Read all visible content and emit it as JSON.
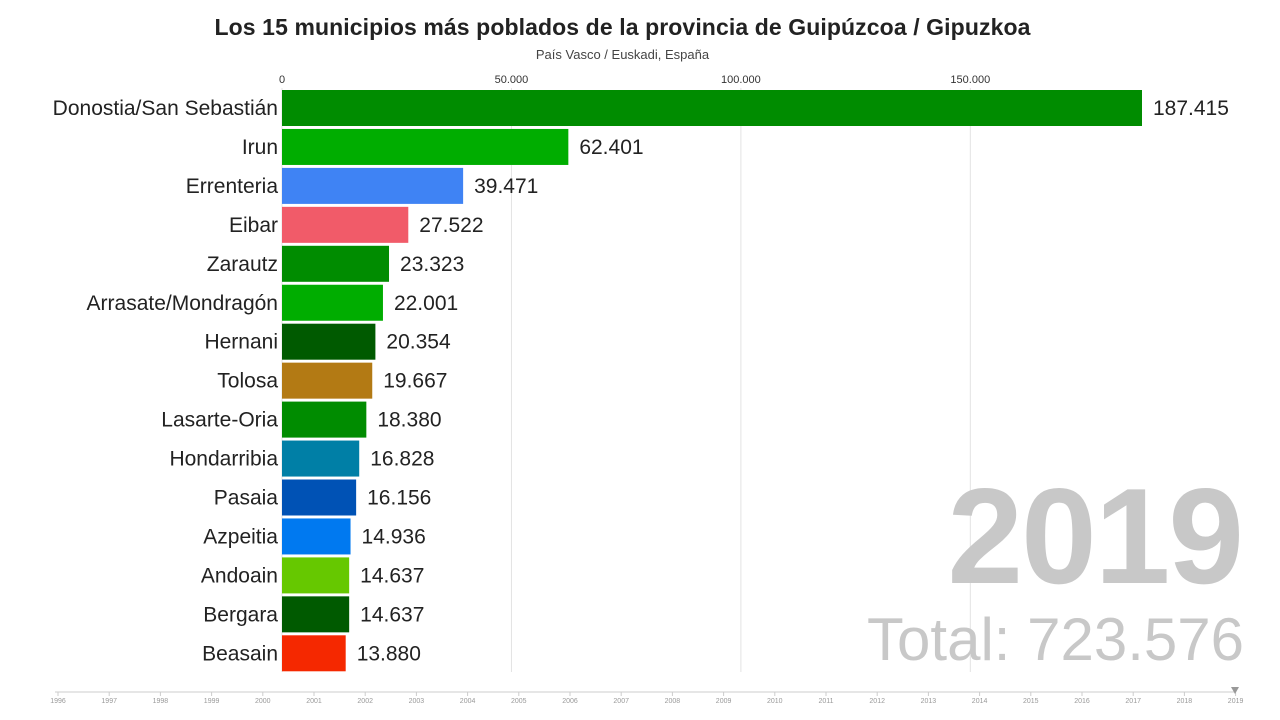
{
  "title": "Los 15 municipios más poblados de la provincia de Guipúzcoa / Gipuzkoa",
  "subtitle": "País Vasco / Euskadi, España",
  "year_label": "2019",
  "total_label": "Total: 723.576",
  "timeline": {
    "years": [
      "1996",
      "1997",
      "1998",
      "1999",
      "2000",
      "2001",
      "2002",
      "2003",
      "2004",
      "2005",
      "2006",
      "2007",
      "2008",
      "2009",
      "2010",
      "2011",
      "2012",
      "2013",
      "2014",
      "2015",
      "2016",
      "2017",
      "2018",
      "2019"
    ],
    "current": "2019"
  },
  "chart_data": {
    "type": "bar",
    "orientation": "horizontal",
    "title": "Los 15 municipios más poblados de la provincia de Guipúzcoa / Gipuzkoa",
    "subtitle": "País Vasco / Euskadi, España",
    "xlim": [
      0,
      187415
    ],
    "xticks": [
      0,
      50000,
      100000,
      150000
    ],
    "xtick_labels": [
      "0",
      "50.000",
      "100.000",
      "150.000"
    ],
    "grid": true,
    "categories": [
      "Donostia/San Sebastián",
      "Irun",
      "Errenteria",
      "Eibar",
      "Zarautz",
      "Arrasate/Mondragón",
      "Hernani",
      "Tolosa",
      "Lasarte-Oria",
      "Hondarribia",
      "Pasaia",
      "Azpeitia",
      "Andoain",
      "Bergara",
      "Beasain"
    ],
    "values": [
      187415,
      62401,
      39471,
      27522,
      23323,
      22001,
      20354,
      19667,
      18380,
      16828,
      16156,
      14936,
      14637,
      14637,
      13880
    ],
    "value_labels": [
      "187.415",
      "62.401",
      "39.471",
      "27.522",
      "23.323",
      "22.001",
      "20.354",
      "19.667",
      "18.380",
      "16.828",
      "16.156",
      "14.936",
      "14.637",
      "14.637",
      "13.880"
    ],
    "colors": [
      "#008c00",
      "#00ad00",
      "#3f83f4",
      "#f15b69",
      "#008c00",
      "#00ad00",
      "#005a00",
      "#b37a14",
      "#008c00",
      "#007fa6",
      "#0052b5",
      "#0079f0",
      "#66c800",
      "#005a00",
      "#f52800"
    ]
  }
}
